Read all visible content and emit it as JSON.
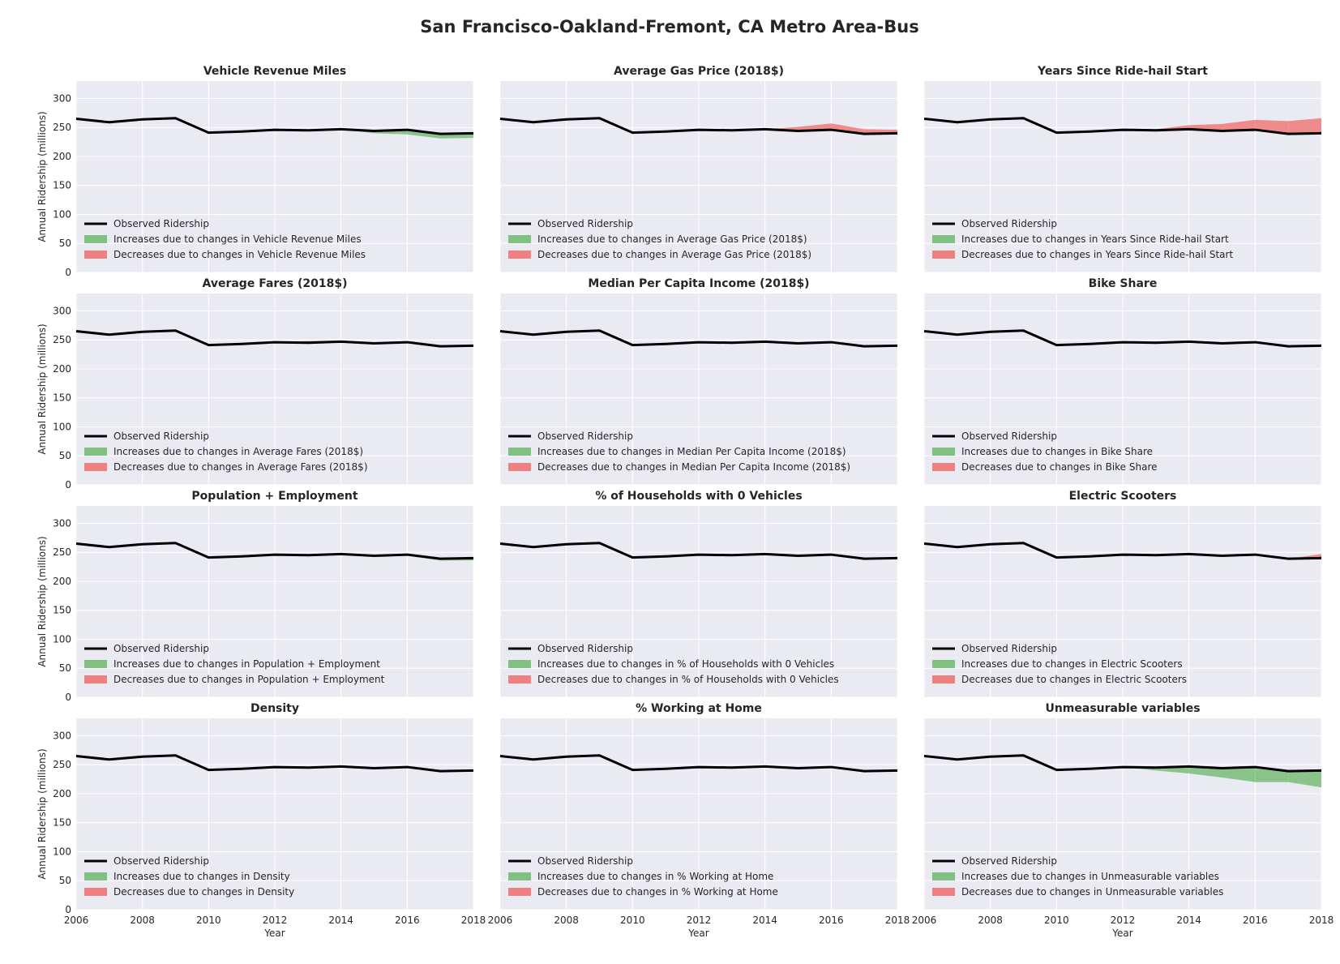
{
  "figure": {
    "title": "San Francisco-Oakland-Fremont, CA Metro Area-Bus",
    "xlabel": "Year",
    "ylabel": "Annual Ridership (millions)",
    "x_ticks": [
      2006,
      2008,
      2010,
      2012,
      2014,
      2016,
      2018
    ],
    "y_ticks": [
      0,
      50,
      100,
      150,
      200,
      250,
      300
    ],
    "legend_observed": "Observed Ridership",
    "increase_prefix": "Increases due to changes in ",
    "decrease_prefix": "Decreases due to changes in "
  },
  "colors": {
    "panel_bg": "#eaeaf2",
    "grid": "#ffffff",
    "observed_line": "#000000",
    "increase_fill": "#80c080",
    "decrease_fill": "#f08080"
  },
  "chart_data": {
    "type": "area",
    "layout": "grid 4x3",
    "shared_axes": true,
    "grid": true,
    "legend_placement": "lower-left",
    "xlim": [
      2006,
      2018
    ],
    "ylim": [
      0,
      330
    ],
    "x": [
      2006,
      2007,
      2008,
      2009,
      2010,
      2011,
      2012,
      2013,
      2014,
      2015,
      2016,
      2017,
      2018
    ],
    "observed": [
      265,
      259,
      264,
      266,
      241,
      243,
      246,
      245,
      247,
      244,
      246,
      239,
      240
    ],
    "panels": [
      {
        "title": "Vehicle Revenue Miles",
        "counterfactual": [
          265,
          259,
          264,
          266,
          241,
          243,
          246,
          245,
          247,
          240,
          238,
          231,
          232
        ]
      },
      {
        "title": "Average Gas Price (2018$)",
        "counterfactual": [
          265,
          259,
          264,
          266,
          241,
          243,
          246,
          245,
          247,
          251,
          257,
          247,
          246
        ]
      },
      {
        "title": "Years Since Ride-hail Start",
        "counterfactual": [
          265,
          259,
          264,
          266,
          241,
          243,
          246,
          247,
          254,
          256,
          263,
          261,
          266
        ]
      },
      {
        "title": "Average Fares (2018$)",
        "counterfactual": [
          265,
          259,
          264,
          266,
          241,
          243,
          246,
          248,
          249,
          245,
          247,
          240,
          241
        ]
      },
      {
        "title": "Median Per Capita Income (2018$)",
        "counterfactual": [
          265,
          259,
          264,
          266,
          241,
          243,
          246,
          245,
          247,
          244,
          246,
          239,
          240
        ]
      },
      {
        "title": "Bike Share",
        "counterfactual": [
          265,
          259,
          264,
          266,
          241,
          243,
          246,
          245,
          247,
          244,
          246,
          239,
          240
        ]
      },
      {
        "title": "Population + Employment",
        "counterfactual": [
          265,
          259,
          264,
          266,
          241,
          243,
          246,
          245,
          247,
          244,
          244,
          236,
          236
        ]
      },
      {
        "title": "% of Households with 0 Vehicles",
        "counterfactual": [
          265,
          259,
          264,
          266,
          241,
          243,
          246,
          245,
          247,
          244,
          246,
          239,
          240
        ]
      },
      {
        "title": "Electric Scooters",
        "counterfactual": [
          265,
          259,
          264,
          266,
          241,
          243,
          246,
          245,
          247,
          244,
          246,
          239,
          247
        ]
      },
      {
        "title": "Density",
        "counterfactual": [
          265,
          259,
          264,
          266,
          241,
          243,
          246,
          245,
          247,
          244,
          246,
          239,
          240
        ]
      },
      {
        "title": "% Working at Home",
        "counterfactual": [
          265,
          259,
          264,
          266,
          241,
          243,
          246,
          245,
          247,
          244,
          246,
          239,
          240
        ]
      },
      {
        "title": "Unmeasurable variables",
        "counterfactual": [
          265,
          259,
          264,
          266,
          241,
          243,
          246,
          240,
          235,
          228,
          220,
          220,
          211
        ]
      }
    ]
  }
}
